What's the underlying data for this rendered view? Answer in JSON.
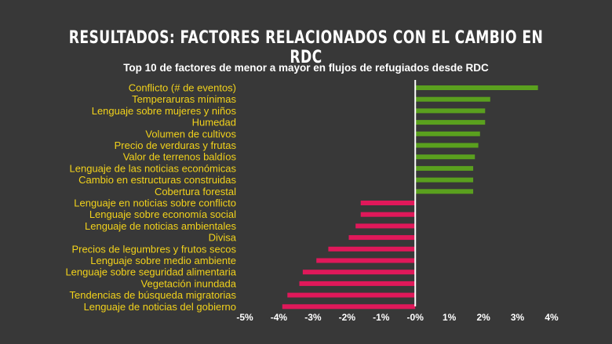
{
  "slide": {
    "title": "RESULTADOS: FACTORES RELACIONADOS CON EL CAMBIO EN RDC"
  },
  "chart_data": {
    "type": "bar",
    "orientation": "horizontal",
    "title": "Top 10 de factores de menor a mayor en flujos de refugiados desde RDC",
    "xlabel": "",
    "ylabel": "",
    "xlim": [
      -5,
      4
    ],
    "x_ticks": [
      "-5%",
      "-4%",
      "-3%",
      "-2%",
      "-1%",
      "-0%",
      "1%",
      "2%",
      "3%",
      "4%"
    ],
    "grid": false,
    "colors": {
      "positive": "#5aa01e",
      "negative": "#e0185a",
      "zero_line": "#ffffff"
    },
    "categories": [
      "Conflicto (# de eventos)",
      "Temperaruras mínimas",
      "Lenguaje sobre mujeres y niños",
      "Humedad",
      "Volumen de cultivos",
      "Precio de verduras y frutas",
      "Valor de terrenos baldíos",
      "Lenguaje de las noticias económicas",
      "Cambio en estructuras construidas",
      "Cobertura forestal",
      "Lenguaje en noticias sobre conflicto",
      "Lenguaje sobre economía social",
      "Lenguaje de noticias ambientales",
      "Divisa",
      "Precios de legumbres y frutos secos",
      "Lenguaje sobre medio ambiente",
      "Lenguaje sobre seguridad alimentaria",
      "Vegetación inundada",
      "Tendencias de búsqueda migratorias",
      "Lenguaje de noticias del gobierno"
    ],
    "values": [
      3.6,
      2.2,
      2.05,
      2.05,
      1.9,
      1.85,
      1.75,
      1.7,
      1.7,
      1.7,
      -1.6,
      -1.6,
      -1.75,
      -1.95,
      -2.55,
      -2.9,
      -3.3,
      -3.4,
      -3.75,
      -3.9
    ]
  }
}
